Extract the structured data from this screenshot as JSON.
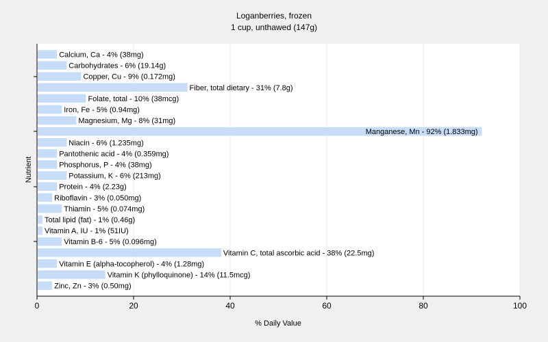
{
  "chart_data": {
    "type": "bar",
    "orientation": "horizontal",
    "title": "Loganberries, frozen",
    "subtitle": "1 cup, unthawed (147g)",
    "xlabel": "% Daily Value",
    "ylabel": "Nutrient",
    "xlim": [
      0,
      100
    ],
    "xticks": [
      0,
      20,
      40,
      60,
      80,
      100
    ],
    "grid": true,
    "bar_color": "#c6dcf7",
    "grid_color": "#e8e8e8",
    "plot_background": "#ffffff",
    "categories": [
      "Calcium, Ca",
      "Carbohydrates",
      "Copper, Cu",
      "Fiber, total dietary",
      "Folate, total",
      "Iron, Fe",
      "Magnesium, Mg",
      "Manganese, Mn",
      "Niacin",
      "Pantothenic acid",
      "Phosphorus, P",
      "Potassium, K",
      "Protein",
      "Riboflavin",
      "Thiamin",
      "Total lipid (fat)",
      "Vitamin A, IU",
      "Vitamin B-6",
      "Vitamin C, total ascorbic acid",
      "Vitamin E (alpha-tocopherol)",
      "Vitamin K (phylloquinone)",
      "Zinc, Zn"
    ],
    "values": [
      4,
      6,
      9,
      31,
      10,
      5,
      8,
      92,
      6,
      4,
      4,
      6,
      4,
      3,
      5,
      1,
      1,
      5,
      38,
      4,
      14,
      3
    ],
    "labels": [
      "Calcium, Ca - 4% (38mg)",
      "Carbohydrates - 6% (19.14g)",
      "Copper, Cu - 9% (0.172mg)",
      "Fiber, total dietary - 31% (7.8g)",
      "Folate, total - 10% (38mcg)",
      "Iron, Fe - 5% (0.94mg)",
      "Magnesium, Mg - 8% (31mg)",
      "Manganese, Mn - 92% (1.833mg)",
      "Niacin - 6% (1.235mg)",
      "Pantothenic acid - 4% (0.359mg)",
      "Phosphorus, P - 4% (38mg)",
      "Potassium, K - 6% (213mg)",
      "Protein - 4% (2.23g)",
      "Riboflavin - 3% (0.050mg)",
      "Thiamin - 5% (0.074mg)",
      "Total lipid (fat) - 1% (0.46g)",
      "Vitamin A, IU - 1% (51IU)",
      "Vitamin B-6 - 5% (0.096mg)",
      "Vitamin C, total ascorbic acid - 38% (22.5mg)",
      "Vitamin E (alpha-tocopherol) - 4% (1.28mg)",
      "Vitamin K (phylloquinone) - 14% (11.5mcg)",
      "Zinc, Zn - 3% (0.50mg)"
    ]
  }
}
